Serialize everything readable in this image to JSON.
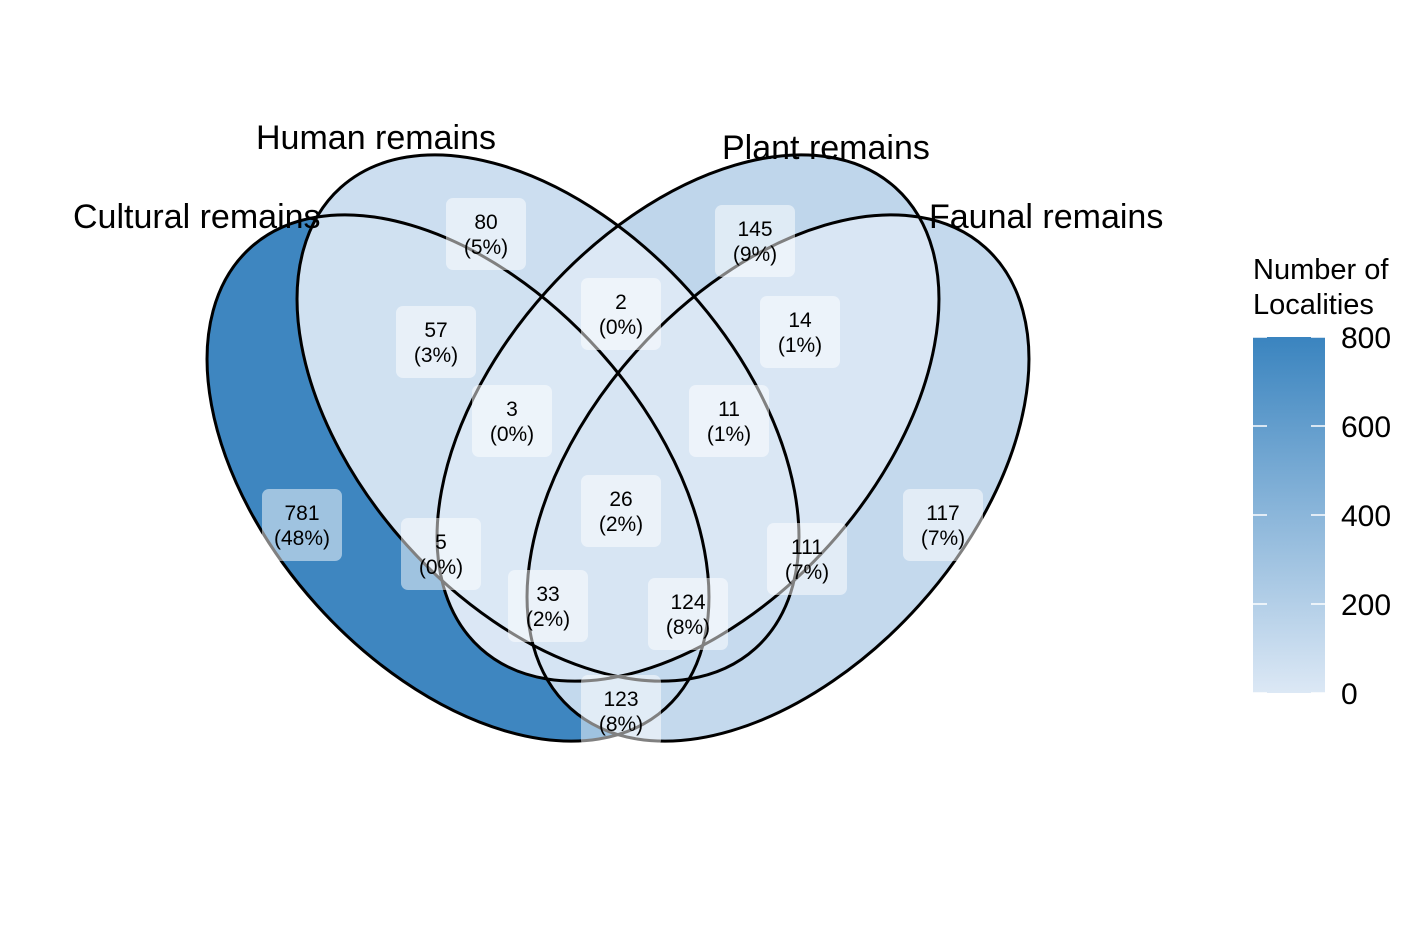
{
  "sets": [
    {
      "key": "cultural",
      "label": "Cultural remains"
    },
    {
      "key": "human",
      "label": "Human remains"
    },
    {
      "key": "plant",
      "label": "Plant remains"
    },
    {
      "key": "faunal",
      "label": "Faunal remains"
    }
  ],
  "regions": [
    {
      "sets": [
        "cultural"
      ],
      "count": "781",
      "percent": "(48%)",
      "value": 781
    },
    {
      "sets": [
        "human"
      ],
      "count": "80",
      "percent": "(5%)",
      "value": 80
    },
    {
      "sets": [
        "plant"
      ],
      "count": "145",
      "percent": "(9%)",
      "value": 145
    },
    {
      "sets": [
        "faunal"
      ],
      "count": "117",
      "percent": "(7%)",
      "value": 117
    },
    {
      "sets": [
        "cultural",
        "human"
      ],
      "count": "57",
      "percent": "(3%)",
      "value": 57
    },
    {
      "sets": [
        "human",
        "plant"
      ],
      "count": "2",
      "percent": "(0%)",
      "value": 2
    },
    {
      "sets": [
        "plant",
        "faunal"
      ],
      "count": "14",
      "percent": "(1%)",
      "value": 14
    },
    {
      "sets": [
        "cultural",
        "human",
        "plant"
      ],
      "count": "3",
      "percent": "(0%)",
      "value": 3
    },
    {
      "sets": [
        "human",
        "plant",
        "faunal"
      ],
      "count": "11",
      "percent": "(1%)",
      "value": 11
    },
    {
      "sets": [
        "cultural",
        "human",
        "plant",
        "faunal"
      ],
      "count": "26",
      "percent": "(2%)",
      "value": 26
    },
    {
      "sets": [
        "cultural",
        "plant"
      ],
      "count": "5",
      "percent": "(0%)",
      "value": 5
    },
    {
      "sets": [
        "human",
        "faunal"
      ],
      "count": "111",
      "percent": "(7%)",
      "value": 111
    },
    {
      "sets": [
        "cultural",
        "plant",
        "faunal"
      ],
      "count": "33",
      "percent": "(2%)",
      "value": 33
    },
    {
      "sets": [
        "cultural",
        "human",
        "faunal"
      ],
      "count": "124",
      "percent": "(8%)",
      "value": 124
    },
    {
      "sets": [
        "cultural",
        "faunal"
      ],
      "count": "123",
      "percent": "(8%)",
      "value": 123
    }
  ],
  "legend": {
    "title_line1": "Number of",
    "title_line2": "Localities",
    "ticks": [
      "0",
      "200",
      "400",
      "600",
      "800"
    ],
    "min": 0,
    "max": 800,
    "color_low": "#dce8f5",
    "color_high": "#3a84bf"
  },
  "colors": {
    "outline": "#000000",
    "label_box": "#ffffff"
  }
}
